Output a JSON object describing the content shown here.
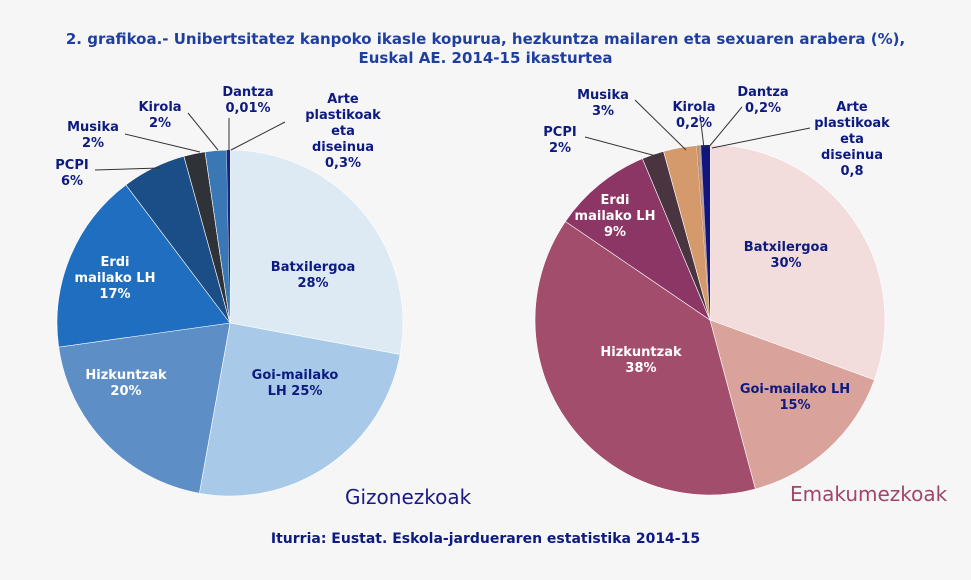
{
  "title_line1": "2. grafikoa.- Unibertsitatez kanpoko ikasle kopurua, hezkuntza mailaren eta sexuaren arabera (%),",
  "title_line2": "Euskal AE. 2014-15 ikasturtea",
  "source": "Iturria: Eustat. Eskola-jardueraren estatistika 2014-15",
  "chart_data": [
    {
      "type": "pie",
      "title": "Gizonezkoak",
      "title_color": "#1a1a80",
      "categories": [
        "Batxilergoa",
        "Goi-mailako LH",
        "Hizkuntzak",
        "Erdi mailako LH",
        "PCPI",
        "Musika",
        "Kirola",
        "Dantza",
        "Arte plastikoak eta diseinua"
      ],
      "values": [
        28,
        25,
        20,
        17,
        6,
        2,
        2,
        0.01,
        0.3
      ],
      "labels": [
        "Batxilergoa\n28%",
        "Goi-mailako\nLH 25%",
        "Hizkuntzak\n20%",
        "Erdi\nmailako  LH\n17%",
        "PCPI\n6%",
        "Musika\n2%",
        "Kirola\n2%",
        "Dantza\n0,01%",
        "Arte\nplastikoak\neta\ndiseinua\n0,3%"
      ],
      "colors": [
        "#dde9f3",
        "#a8cae8",
        "#5d8ec6",
        "#1f6ec0",
        "#1b4d87",
        "#2f3237",
        "#3a77b5",
        "#7a9cc0",
        "#1a237e"
      ]
    },
    {
      "type": "pie",
      "title": "Emakumezkoak",
      "title_color": "#a2456a",
      "categories": [
        "Batxilergoa",
        "Goi-mailako LH",
        "Hizkuntzak",
        "Erdi mailako LH",
        "PCPI",
        "Musika",
        "Kirola",
        "Dantza",
        "Arte plastikoak eta diseinua"
      ],
      "values": [
        30,
        15,
        38,
        9,
        2,
        3,
        0.2,
        0.2,
        0.8
      ],
      "labels": [
        "Batxilergoa\n30%",
        "Goi-mailako  LH\n15%",
        "Hizkuntzak\n38%",
        "Erdi\nmailako  LH\n9%",
        "PCPI\n2%",
        "Musika\n3%",
        "Kirola\n0,2%",
        "Dantza\n0,2%",
        "Arte\nplastikoak\neta\ndiseinua\n0,8"
      ],
      "colors": [
        "#f2dcdc",
        "#d9a39c",
        "#a34d6c",
        "#8c3665",
        "#4a3440",
        "#d49a6c",
        "#c48a70",
        "#b0a0a0",
        "#10167e"
      ]
    }
  ]
}
